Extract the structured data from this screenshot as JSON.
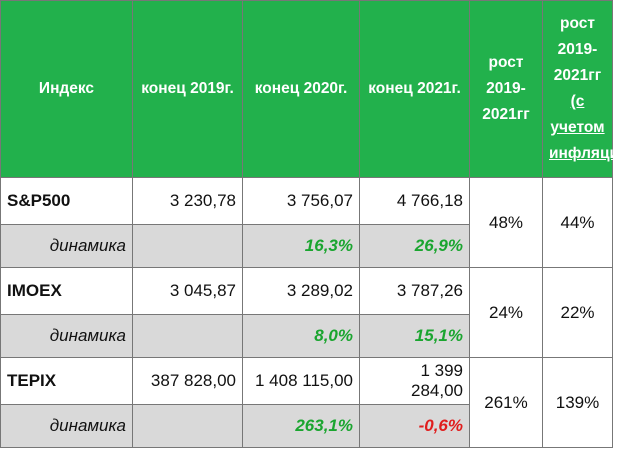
{
  "header": {
    "col_index": "Индекс",
    "col_2019": "конец 2019г.",
    "col_2020": "конец 2020г.",
    "col_2021": "конец 2021г.",
    "growth_line1": "рост 2019-",
    "growth_line2": "2021гг",
    "growth_infl_line1": "рост 2019-",
    "growth_infl_line2": "2021гг",
    "growth_infl_line3": "(с учетом",
    "growth_infl_line4": "инфляции)"
  },
  "dynamics_label": "динамика",
  "rows": [
    {
      "name": "S&P500",
      "v2019": "3 230,78",
      "v2020": "3 756,07",
      "v2021": "4 766,18",
      "d2020": "16,3%",
      "d2021": "26,9%",
      "growth": "48%",
      "growth_infl": "44%"
    },
    {
      "name": "IMOEX",
      "v2019": "3 045,87",
      "v2020": "3 289,02",
      "v2021": "3 787,26",
      "d2020": "8,0%",
      "d2021": "15,1%",
      "growth": "24%",
      "growth_infl": "22%"
    },
    {
      "name": "TEPIX",
      "v2019": "387 828,00",
      "v2020": "1 408 115,00",
      "v2021": "1 399 284,00",
      "d2020": "263,1%",
      "d2021": "-0,6%",
      "growth": "261%",
      "growth_infl": "139%"
    }
  ],
  "colors": {
    "header_bg": "#22b14c",
    "positive": "#1aa52f",
    "negative": "#e01d1d",
    "dynamics_bg": "#d9d9d9"
  }
}
